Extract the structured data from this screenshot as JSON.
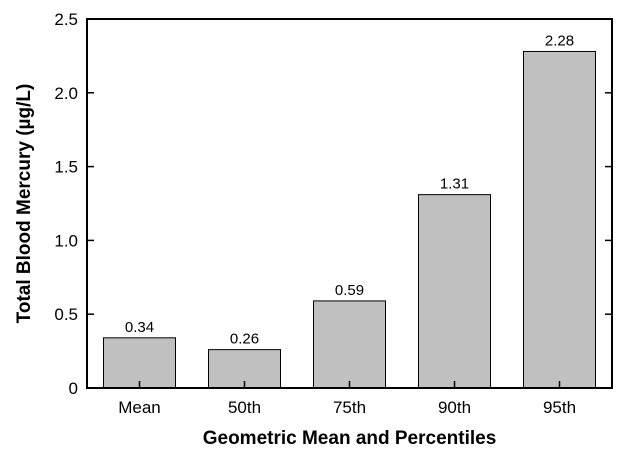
{
  "chart_data": {
    "type": "bar",
    "title": "",
    "xlabel": "Geometric Mean and Percentiles",
    "ylabel": "Total Blood Mercury (µg/L)",
    "categories": [
      "Mean",
      "50th",
      "75th",
      "90th",
      "95th"
    ],
    "values": [
      0.34,
      0.26,
      0.59,
      1.31,
      2.28
    ],
    "data_labels": [
      "0.34",
      "0.26",
      "0.59",
      "1.31",
      "2.28"
    ],
    "ylim": [
      0,
      2.5
    ],
    "yticks": [
      "0",
      "0.5",
      "1.0",
      "1.5",
      "2.0",
      "2.5"
    ],
    "grid": false,
    "colors": {
      "bar_fill": "#c0c0c0",
      "bar_stroke": "#000000",
      "axis": "#000000"
    }
  }
}
